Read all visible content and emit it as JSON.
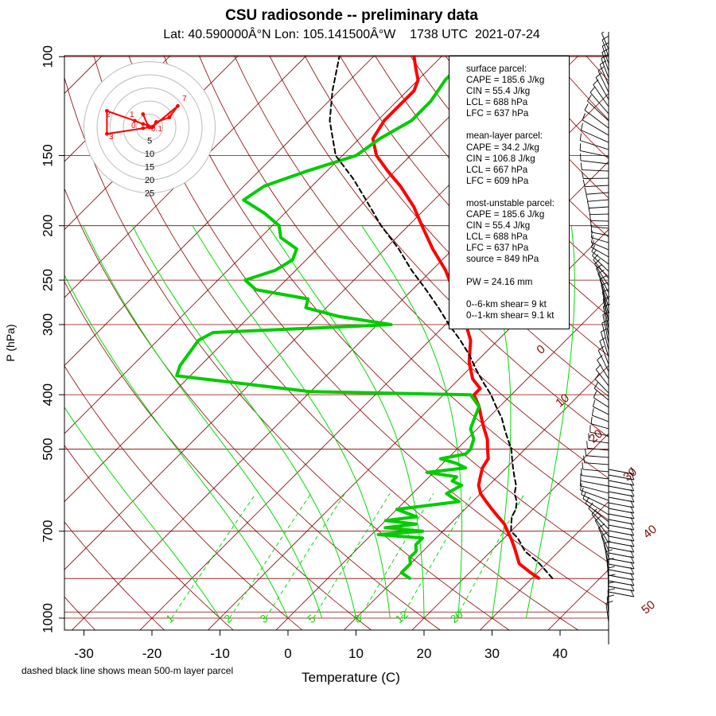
{
  "title": "CSU radiosonde -- preliminary data",
  "subtitle": "Lat: 40.590000Â°N Lon: 105.141500Â°W    1738 UTC  2021-07-24",
  "footnote": "dashed black line shows mean 500-m layer parcel",
  "colors": {
    "temperature": "#ff0000",
    "dewpoint": "#00cc00",
    "isobar": "#8b0000",
    "dry_adiabat": "#8b0000",
    "moist_adiabat": "#00dd00",
    "mixing_ratio": "#00dd00",
    "parcel": "#000000",
    "hodograph": "#ff0000"
  },
  "info": {
    "surface_header": "surface parcel:",
    "surface": [
      "CAPE = 185.6 J/kg",
      "CIN = 55.4 J/kg",
      "LCL = 688 hPa",
      "LFC = 637 hPa"
    ],
    "mean_header": "mean-layer parcel:",
    "mean": [
      "CAPE = 34.2 J/kg",
      "CIN = 106.8 J/kg",
      "LCL = 667 hPa",
      "LFC = 609 hPa"
    ],
    "mu_header": "most-unstable parcel:",
    "mu": [
      "CAPE = 185.6 J/kg",
      "CIN = 55.4 J/kg",
      "LCL = 688 hPa",
      "LFC = 637 hPa",
      "source = 849 hPa"
    ],
    "pw": "PW =  24.16 mm",
    "shear6": "0--6-km shear= 9 kt",
    "shear1": "0--1-km shear= 9.1 kt"
  },
  "chart_data": {
    "type": "line",
    "title": "CSU radiosonde -- preliminary data",
    "xlabel": "Temperature (C)",
    "ylabel": "P (hPa)",
    "xlim": [
      -35,
      45
    ],
    "ylim": [
      1000,
      100
    ],
    "y_scale": "log",
    "x_ticks": [
      -30,
      -20,
      -10,
      0,
      10,
      20,
      30,
      40
    ],
    "x_tick_labels": [
      "-30",
      "-20",
      "-10",
      "0",
      "10",
      "20",
      "30",
      "40"
    ],
    "y_ticks": [
      1000,
      700,
      500,
      400,
      300,
      250,
      200,
      150,
      100
    ],
    "y_tick_labels": [
      "1000",
      "700",
      "500",
      "400",
      "300",
      "250",
      "200",
      "150",
      "100"
    ],
    "skew_labels": [
      "0",
      "10",
      "20",
      "30",
      "40",
      "50"
    ],
    "mixing_ratio_labels": [
      "1",
      "2",
      "3",
      "5",
      "8",
      "12",
      "20"
    ],
    "mixing_ratio_values": [
      1,
      2,
      3,
      5,
      8,
      12,
      20
    ],
    "series": [
      {
        "name": "",
        "key": "temperature",
        "points": [
          [
            849,
            31
          ],
          [
            830,
            29
          ],
          [
            800,
            26
          ],
          [
            750,
            23
          ],
          [
            720,
            21
          ],
          [
            700,
            19.5
          ],
          [
            680,
            18
          ],
          [
            660,
            16
          ],
          [
            640,
            14
          ],
          [
            620,
            12
          ],
          [
            600,
            10
          ],
          [
            580,
            8.5
          ],
          [
            560,
            7.5
          ],
          [
            540,
            6.5
          ],
          [
            520,
            6
          ],
          [
            500,
            4.5
          ],
          [
            480,
            3
          ],
          [
            460,
            1
          ],
          [
            440,
            -1
          ],
          [
            420,
            -3
          ],
          [
            400,
            -5.5
          ],
          [
            390,
            -5.5
          ],
          [
            375,
            -8
          ],
          [
            350,
            -11
          ],
          [
            320,
            -14
          ],
          [
            300,
            -17
          ],
          [
            280,
            -20
          ],
          [
            260,
            -24
          ],
          [
            240,
            -28
          ],
          [
            220,
            -33
          ],
          [
            200,
            -38
          ],
          [
            185,
            -42
          ],
          [
            170,
            -47
          ],
          [
            160,
            -51
          ],
          [
            150,
            -55
          ],
          [
            140,
            -58
          ],
          [
            130,
            -59
          ],
          [
            120,
            -59
          ],
          [
            115,
            -59
          ],
          [
            110,
            -60
          ],
          [
            105,
            -62
          ],
          [
            100,
            -64
          ]
        ]
      },
      {
        "name": "",
        "key": "dewpoint",
        "points": [
          [
            849,
            12
          ],
          [
            830,
            10
          ],
          [
            800,
            10
          ],
          [
            780,
            9
          ],
          [
            760,
            9
          ],
          [
            740,
            8
          ],
          [
            720,
            8
          ],
          [
            710,
            1
          ],
          [
            700,
            7
          ],
          [
            690,
            1
          ],
          [
            680,
            5
          ],
          [
            670,
            0
          ],
          [
            660,
            4
          ],
          [
            640,
            0
          ],
          [
            620,
            8
          ],
          [
            600,
            5
          ],
          [
            580,
            6
          ],
          [
            570,
            4
          ],
          [
            560,
            4
          ],
          [
            550,
            -1
          ],
          [
            540,
            4
          ],
          [
            530,
            2
          ],
          [
            520,
            -1
          ],
          [
            510,
            2
          ],
          [
            500,
            2
          ],
          [
            480,
            1
          ],
          [
            460,
            -1
          ],
          [
            440,
            -2
          ],
          [
            420,
            -3
          ],
          [
            400,
            -6
          ],
          [
            395,
            -30
          ],
          [
            370,
            -52
          ],
          [
            355,
            -53
          ],
          [
            320,
            -54
          ],
          [
            310,
            -53
          ],
          [
            300,
            -28
          ],
          [
            290,
            -37
          ],
          [
            280,
            -43
          ],
          [
            270,
            -44
          ],
          [
            260,
            -53
          ],
          [
            250,
            -56
          ],
          [
            240,
            -53
          ],
          [
            230,
            -52
          ],
          [
            220,
            -53
          ],
          [
            210,
            -57
          ],
          [
            200,
            -59
          ],
          [
            190,
            -63
          ],
          [
            180,
            -68
          ],
          [
            170,
            -67
          ],
          [
            160,
            -63
          ],
          [
            150,
            -58
          ],
          [
            140,
            -57
          ],
          [
            130,
            -55
          ],
          [
            120,
            -55
          ],
          [
            110,
            -56
          ],
          [
            100,
            -56
          ]
        ]
      },
      {
        "name": "",
        "key": "parcel",
        "points": [
          [
            849,
            33
          ],
          [
            800,
            29
          ],
          [
            760,
            25
          ],
          [
            720,
            22
          ],
          [
            700,
            20
          ],
          [
            680,
            19
          ],
          [
            660,
            18
          ],
          [
            640,
            17.5
          ],
          [
            620,
            16.5
          ],
          [
            600,
            15
          ],
          [
            580,
            14
          ],
          [
            560,
            12.5
          ],
          [
            540,
            11
          ],
          [
            520,
            9.5
          ],
          [
            500,
            8
          ],
          [
            480,
            6
          ],
          [
            460,
            4
          ],
          [
            440,
            2
          ],
          [
            420,
            -0.5
          ],
          [
            400,
            -3
          ],
          [
            380,
            -6
          ],
          [
            360,
            -9
          ],
          [
            340,
            -12
          ],
          [
            320,
            -15.5
          ],
          [
            300,
            -19.5
          ],
          [
            280,
            -23.5
          ],
          [
            260,
            -28
          ],
          [
            240,
            -33
          ],
          [
            220,
            -38
          ],
          [
            200,
            -44
          ],
          [
            180,
            -50
          ],
          [
            165,
            -55
          ],
          [
            150,
            -61
          ],
          [
            130,
            -67
          ],
          [
            115,
            -71
          ],
          [
            100,
            -75
          ]
        ]
      }
    ],
    "hodograph": {
      "rings": [
        5,
        10,
        15,
        20,
        25
      ],
      "ring_labels": [
        "5",
        "10",
        "15",
        "20",
        "25"
      ],
      "points": [
        [
          -2,
          4
        ],
        [
          -0.5,
          0.5
        ],
        [
          0.8,
          0
        ],
        [
          2,
          1.6
        ],
        [
          6,
          3
        ],
        [
          8.6,
          6.5
        ],
        [
          1,
          0.2
        ],
        [
          -2,
          1
        ],
        [
          -4.5,
          2
        ],
        [
          -13,
          5
        ],
        [
          -13,
          -2
        ],
        [
          -2,
          -0.3
        ],
        [
          0,
          0
        ]
      ],
      "labels": [
        "7",
        "1",
        "6",
        "2",
        "0",
        "3",
        "0.1"
      ]
    }
  }
}
